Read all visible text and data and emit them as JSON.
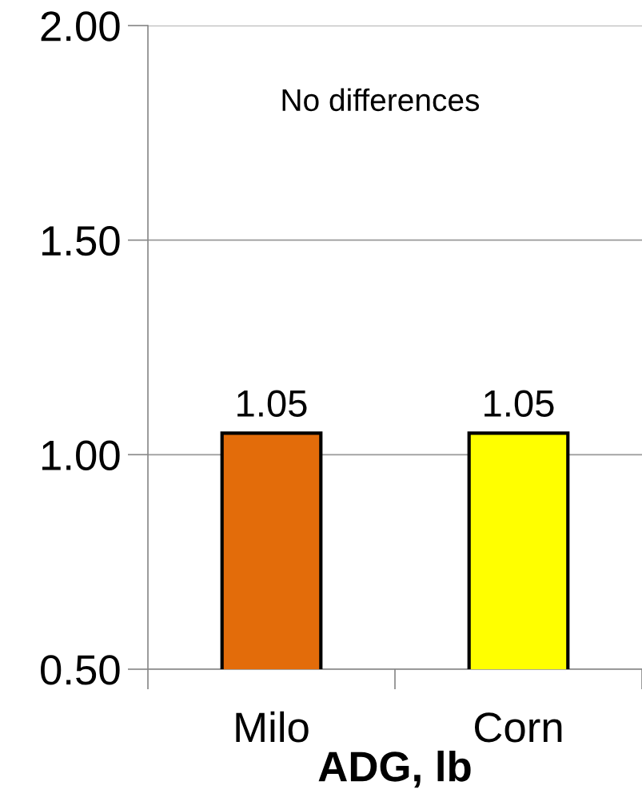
{
  "chart_data": {
    "type": "bar",
    "xlabel": "ADG, lb",
    "categories": [
      "Milo",
      "Corn"
    ],
    "values": [
      1.05,
      1.05
    ],
    "colors": [
      "#e36c0a",
      "#ffff00"
    ],
    "ylim": [
      0.5,
      2.0
    ],
    "yticks": [
      {
        "value": 0.5,
        "label": "0.50"
      },
      {
        "value": 1.0,
        "label": "1.00"
      },
      {
        "value": 1.5,
        "label": "1.50"
      },
      {
        "value": 2.0,
        "label": "2.00"
      }
    ],
    "grid": "y",
    "data_labels": true,
    "annotations": [
      "No differences"
    ]
  }
}
